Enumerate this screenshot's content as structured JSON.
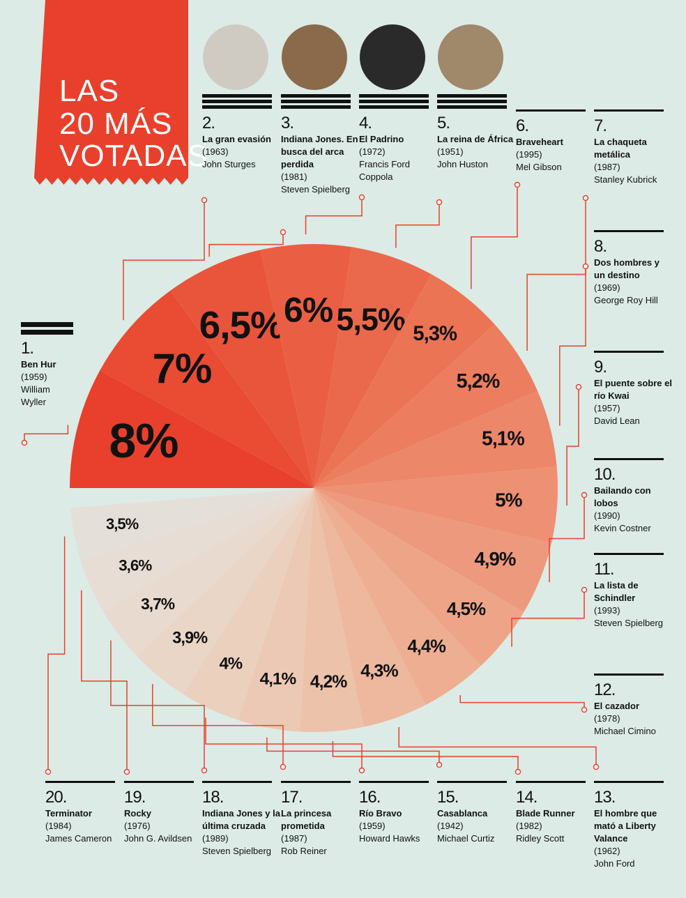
{
  "title_lines": [
    "LAS",
    "20 MÁS",
    "VOTADAS"
  ],
  "chart_data": {
    "type": "pie",
    "categories": [
      "Ben Hur",
      "La gran evasión",
      "Indiana Jones. En busca del arca perdida",
      "El Padrino",
      "La reina de África",
      "Braveheart",
      "La chaqueta metálica",
      "Dos hombres y un destino",
      "El puente sobre el río Kwai",
      "Bailando con lobos",
      "La lista de Schindler",
      "El cazador",
      "El hombre que mató a Liberty Valance",
      "Blade Runner",
      "Casablanca",
      "Río Bravo",
      "La princesa prometida",
      "Indiana Jones y la última cruzada",
      "Rocky",
      "Terminator"
    ],
    "values": [
      8,
      7,
      6.5,
      6,
      5.5,
      5.3,
      5.2,
      5.1,
      5,
      4.9,
      4.5,
      4.4,
      4.3,
      4.2,
      4.1,
      4,
      3.9,
      3.7,
      3.6,
      3.5
    ],
    "value_labels": [
      "8%",
      "7%",
      "6,5%",
      "6%",
      "5,5%",
      "5,3%",
      "5,2%",
      "5,1%",
      "5%",
      "4,9%",
      "4,5%",
      "4,4%",
      "4,3%",
      "4,2%",
      "4,1%",
      "4%",
      "3,9%",
      "3,7%",
      "3,6%",
      "3,5%"
    ],
    "colors": [
      "#e8402c",
      "#e94b33",
      "#e9553b",
      "#ea5f43",
      "#ea694c",
      "#eb7455",
      "#ec7e5f",
      "#ec8769",
      "#ed9073",
      "#ed997d",
      "#eea587",
      "#eeae92",
      "#edb89e",
      "#edc2aa",
      "#ecc9b4",
      "#ebd0be",
      "#ead6c7",
      "#e8dacf",
      "#e7ddd4",
      "#e4e0d9"
    ]
  },
  "movies": [
    {
      "rank": "1.",
      "year": "(1959)",
      "director": "William Wyller"
    },
    {
      "rank": "2.",
      "year": "(1963)",
      "director": "John Sturges"
    },
    {
      "rank": "3.",
      "year": "(1981)",
      "director": "Steven Spielberg"
    },
    {
      "rank": "4.",
      "year": "(1972)",
      "director": "Francis Ford Coppola"
    },
    {
      "rank": "5.",
      "year": "(1951)",
      "director": "John Huston"
    },
    {
      "rank": "6.",
      "year": "(1995)",
      "director": "Mel Gibson"
    },
    {
      "rank": "7.",
      "year": "(1987)",
      "director": "Stanley Kubrick"
    },
    {
      "rank": "8.",
      "year": "(1969)",
      "director": "George Roy Hill"
    },
    {
      "rank": "9.",
      "year": "(1957)",
      "director": "David Lean"
    },
    {
      "rank": "10.",
      "year": "(1990)",
      "director": "Kevin Costner"
    },
    {
      "rank": "11.",
      "year": "(1993)",
      "director": "Steven Spielberg"
    },
    {
      "rank": "12.",
      "year": "(1978)",
      "director": "Michael Cimino"
    },
    {
      "rank": "13.",
      "year": "(1962)",
      "director": "John Ford"
    },
    {
      "rank": "14.",
      "year": "(1982)",
      "director": "Ridley Scott"
    },
    {
      "rank": "15.",
      "year": "(1942)",
      "director": "Michael Curtiz"
    },
    {
      "rank": "16.",
      "year": "(1959)",
      "director": "Howard Hawks"
    },
    {
      "rank": "17.",
      "year": "(1987)",
      "director": "Rob Reiner"
    },
    {
      "rank": "18.",
      "year": "(1989)",
      "director": "Steven Spielberg"
    },
    {
      "rank": "19.",
      "year": "(1976)",
      "director": "John G. Avildsen"
    },
    {
      "rank": "20.",
      "year": "(1984)",
      "director": "James Cameron"
    }
  ]
}
